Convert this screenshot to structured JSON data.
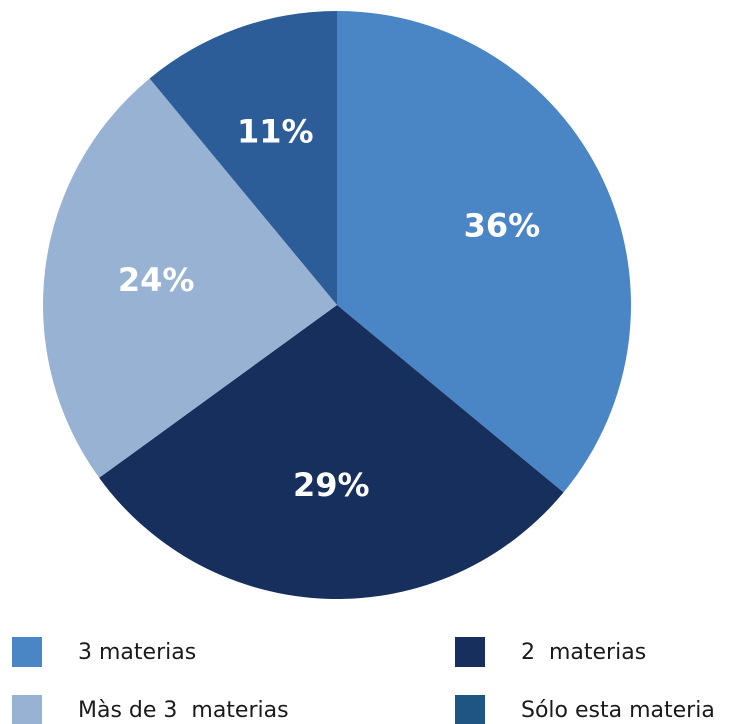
{
  "chart_data": {
    "type": "pie",
    "slices": [
      {
        "label": "3 materias",
        "value": 36,
        "value_label": "36%",
        "color": "#4a86c5"
      },
      {
        "label": "2  materias",
        "value": 29,
        "value_label": "29%",
        "color": "#172f5c"
      },
      {
        "label": "Màs de 3  materias",
        "value": 24,
        "value_label": "24%",
        "color": "#98b2d3"
      },
      {
        "label": "Sólo esta materia",
        "value": 11,
        "value_label": "11%",
        "color": "#2c5d98"
      }
    ],
    "legend_order": [
      0,
      1,
      2,
      3
    ],
    "legend_colors": [
      "#4a86c5",
      "#172f5c",
      "#98b2d3",
      "#1f5582"
    ],
    "start": "12 o'clock",
    "direction": "clockwise",
    "legend_placement": "bottom"
  }
}
